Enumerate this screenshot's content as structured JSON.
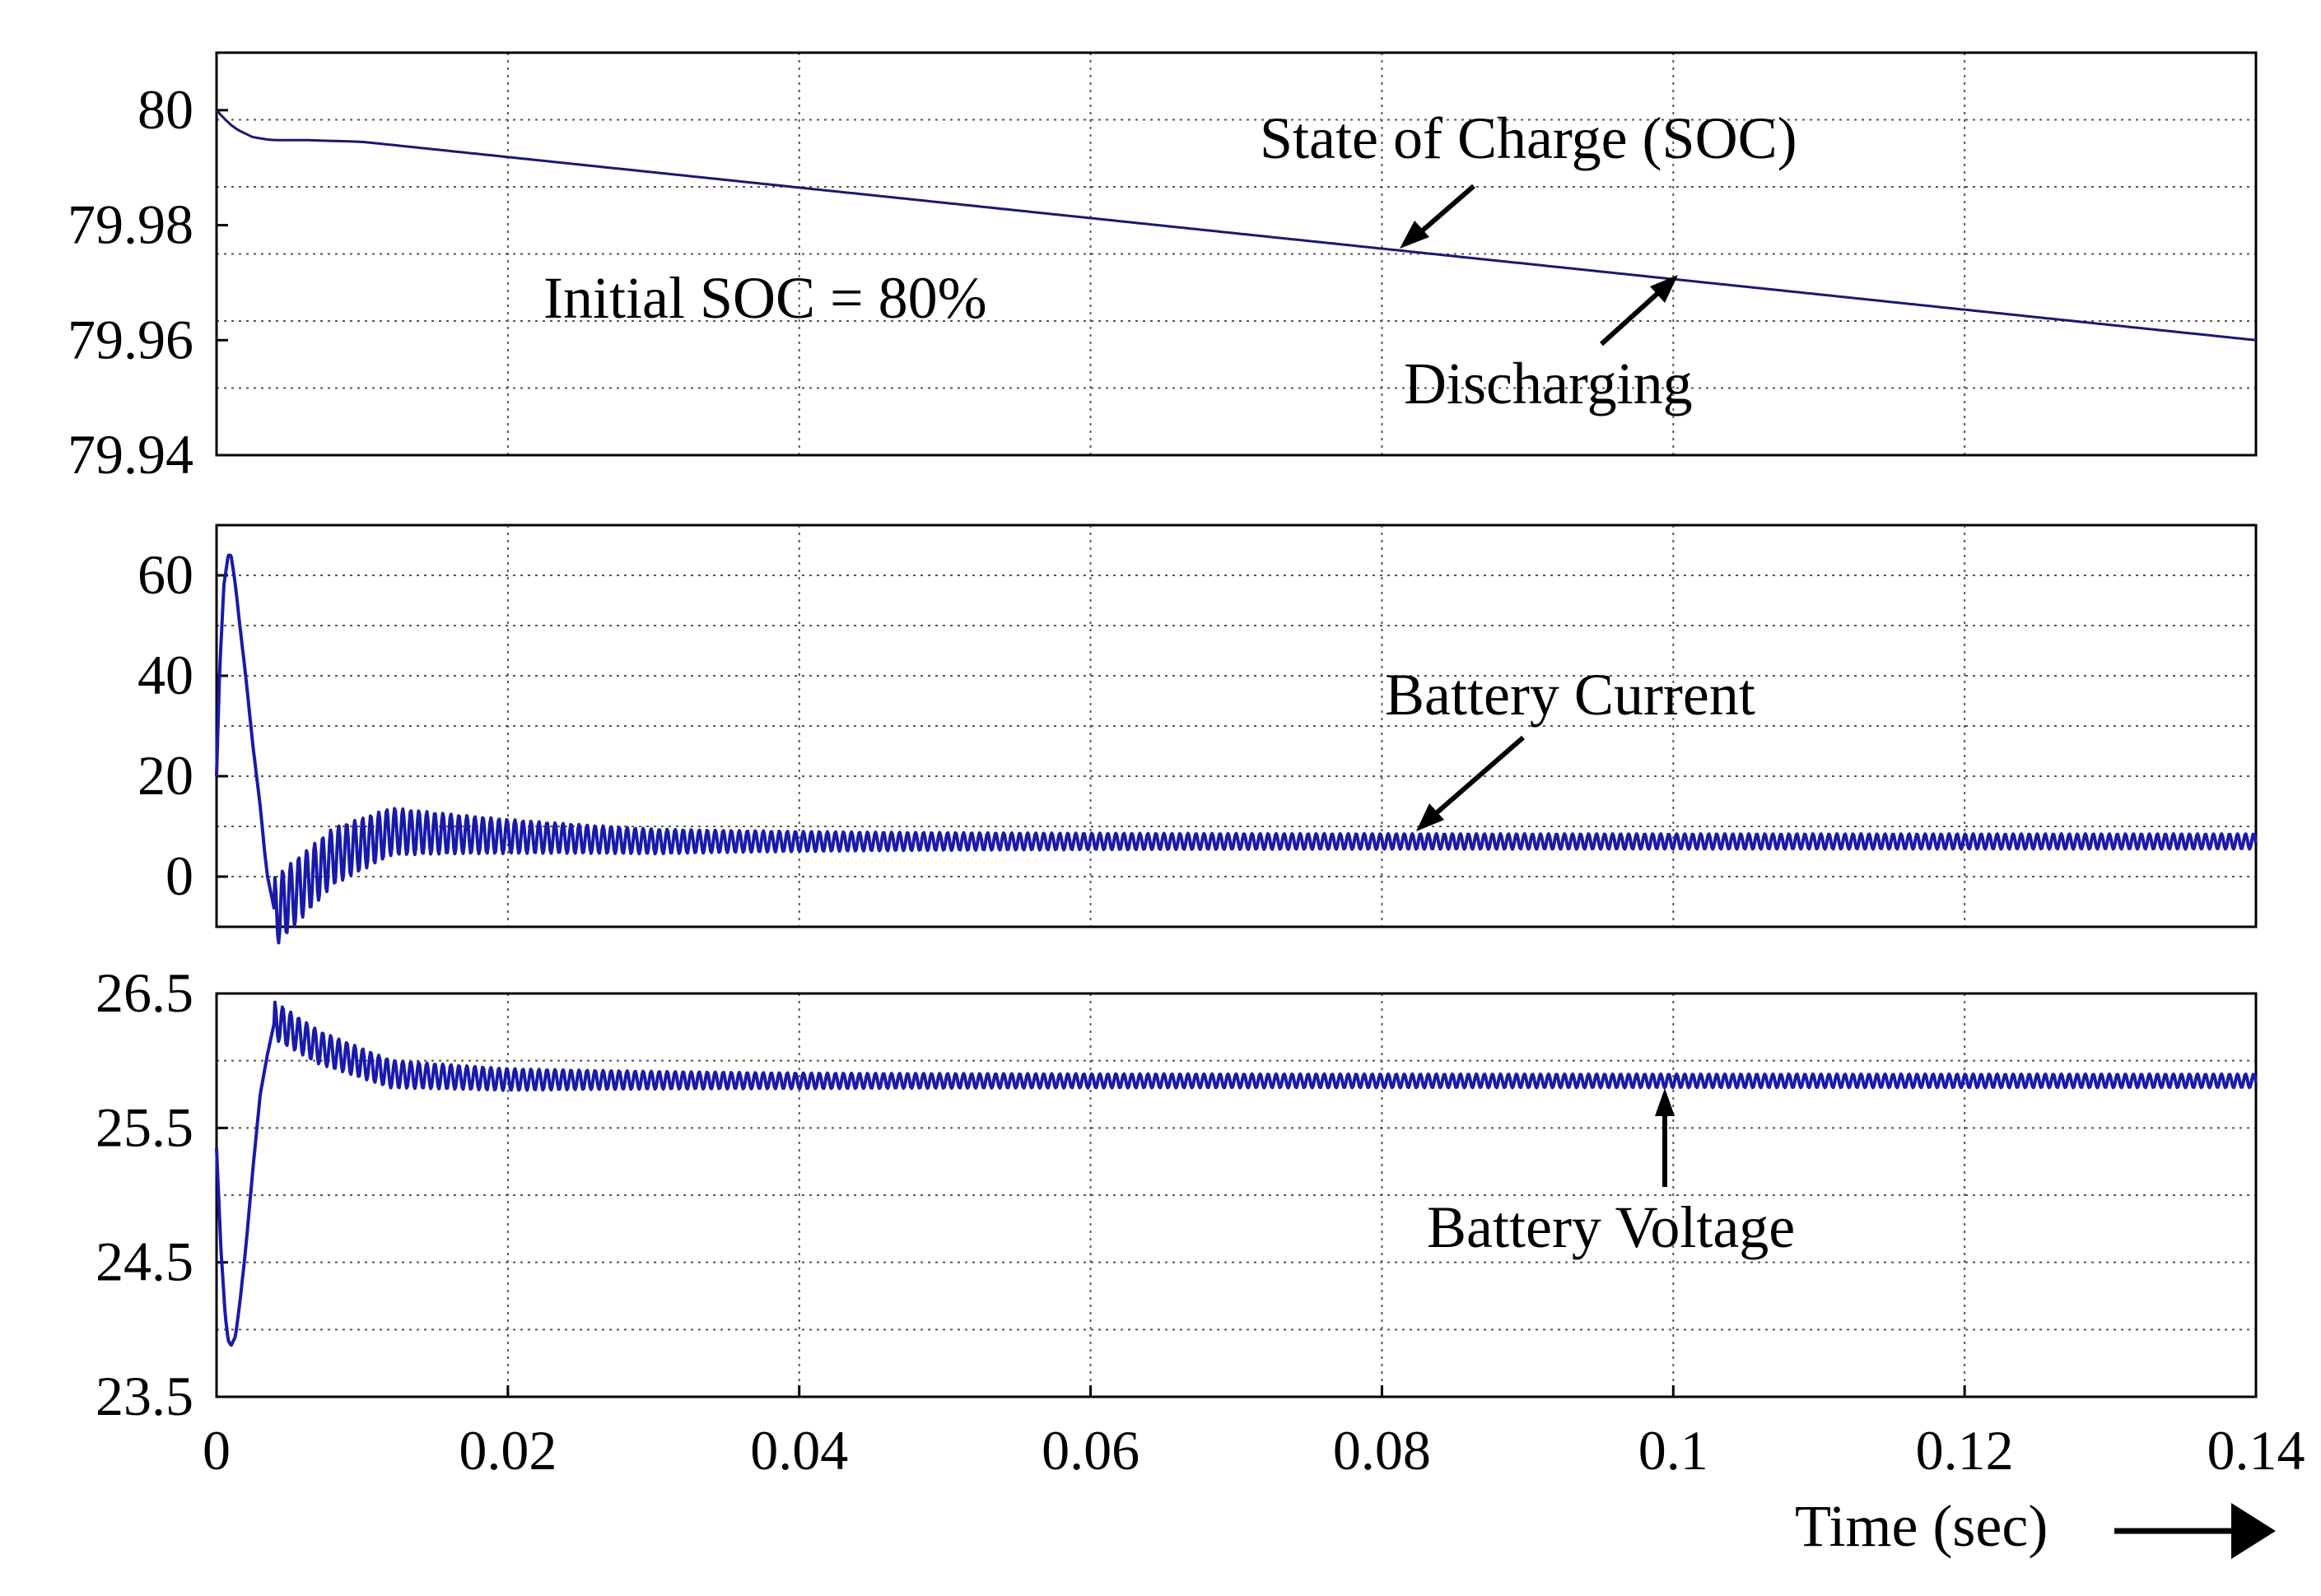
{
  "chart_data": [
    {
      "type": "line",
      "title": "",
      "xlabel": "",
      "ylabel": "",
      "xlim": [
        0,
        0.14
      ],
      "ylim": [
        79.94,
        80.01
      ],
      "grid": true,
      "yticks": [
        80,
        79.98,
        79.96,
        79.94
      ],
      "ytick_labels": [
        "80",
        "79.98",
        "79.96",
        "79.94"
      ],
      "series": [
        {
          "name": "State of Charge (SOC)",
          "color": "#1a1a6e",
          "x": [
            0,
            0.0005,
            0.001,
            0.0015,
            0.002,
            0.0025,
            0.003,
            0.0035,
            0.004,
            0.006,
            0.01,
            0.14
          ],
          "values": [
            80.0,
            79.9986,
            79.9974,
            79.9965,
            79.9959,
            79.9953,
            79.9951,
            79.9949,
            79.9948,
            79.9948,
            79.9945,
            79.96
          ]
        }
      ],
      "annotations": [
        {
          "text": "State of Charge (SOC)"
        },
        {
          "text": "Initial SOC = 80%"
        },
        {
          "text": "Discharging"
        }
      ]
    },
    {
      "type": "line",
      "title": "",
      "xlabel": "",
      "ylabel": "",
      "xlim": [
        0,
        0.14
      ],
      "ylim": [
        -10,
        70
      ],
      "grid": true,
      "yticks": [
        60,
        40,
        20,
        0
      ],
      "ytick_labels": [
        "60",
        "40",
        "20",
        "0"
      ],
      "series": [
        {
          "name": "Battery Current",
          "color": "#1a1aa8",
          "x": [
            0,
            0.0002,
            0.0005,
            0.0008,
            0.001,
            0.0013,
            0.0016,
            0.002,
            0.0025,
            0.003,
            0.0033,
            0.0035,
            0.004,
            0.008,
            0.012,
            0.02,
            0.03,
            0.04,
            0.14
          ],
          "values": [
            20,
            40,
            58,
            64,
            64,
            58,
            50,
            40,
            26,
            14,
            5,
            0,
            -7,
            4,
            9,
            8,
            7,
            7,
            7
          ],
          "ripple_amplitude_start": 7,
          "ripple_amplitude_end": 1.5
        }
      ],
      "annotations": [
        {
          "text": "Battery Current"
        }
      ]
    },
    {
      "type": "line",
      "title": "",
      "xlabel": "",
      "ylabel": "",
      "xlim": [
        0,
        0.14
      ],
      "ylim": [
        23.5,
        26.5
      ],
      "grid": true,
      "yticks": [
        26.5,
        25.5,
        24.5,
        23.5
      ],
      "ytick_labels": [
        "26.5",
        "25.5",
        "24.5",
        "23.5"
      ],
      "series": [
        {
          "name": "Battery Voltage",
          "color": "#1a1aa8",
          "x": [
            0,
            0.0003,
            0.0006,
            0.0008,
            0.001,
            0.0013,
            0.0016,
            0.002,
            0.0025,
            0.003,
            0.0035,
            0.004,
            0.007,
            0.012,
            0.02,
            0.04,
            0.14
          ],
          "values": [
            25.35,
            24.6,
            24.1,
            23.92,
            23.88,
            23.95,
            24.2,
            24.6,
            25.2,
            25.75,
            26.05,
            26.3,
            26.1,
            25.9,
            25.86,
            25.85,
            25.85
          ],
          "ripple_amplitude_start": 0.14,
          "ripple_amplitude_end": 0.05
        }
      ],
      "annotations": [
        {
          "text": "Battery Voltage"
        }
      ]
    }
  ],
  "xaxis": {
    "ticks": [
      0,
      0.02,
      0.04,
      0.06,
      0.08,
      0.1,
      0.12,
      0.14
    ],
    "tick_labels": [
      "0",
      "0.02",
      "0.04",
      "0.06",
      "0.08",
      "0.1",
      "0.12",
      "0.14"
    ],
    "title": "Time (sec)"
  }
}
